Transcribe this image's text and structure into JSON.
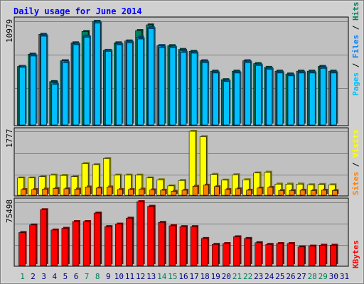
{
  "title": "Daily usage for June 2014",
  "colors": {
    "hits": "#00805c",
    "files": "#0080ff",
    "pages": "#00c0ff",
    "visits": "#ffff00",
    "sites": "#ff8000",
    "kbytes": "#ff0000",
    "weekend_label": "#00805c",
    "weekday_label": "#000080",
    "title": "#0000ff",
    "panel": "#c0c0c0",
    "frame": "#d0d0d0"
  },
  "chart_data": [
    {
      "type": "bar",
      "panel": "hits-files-pages",
      "ymax": 10979,
      "ymax_label": "10979",
      "legend": [
        "Hits",
        "Files",
        "Pages"
      ],
      "series": [
        {
          "name": "Hits",
          "values": [
            6200,
            7500,
            9600,
            4600,
            6800,
            8700,
            9900,
            11100,
            7900,
            8700,
            8900,
            10000,
            10600,
            8400,
            8400,
            8000,
            7800,
            6800,
            5700,
            4800,
            5700,
            6800,
            6500,
            6100,
            5700,
            5400,
            5700,
            5700,
            6200,
            5700
          ]
        },
        {
          "name": "Files",
          "values": [
            6200,
            7400,
            9500,
            4500,
            6800,
            8600,
            9400,
            10900,
            7900,
            8600,
            8800,
            9300,
            10300,
            8400,
            8300,
            7900,
            7700,
            6700,
            5600,
            4700,
            5600,
            6700,
            6400,
            6000,
            5600,
            5300,
            5600,
            5600,
            6100,
            5600
          ]
        },
        {
          "name": "Pages",
          "values": [
            6100,
            7300,
            9400,
            4300,
            6600,
            8500,
            9300,
            10800,
            7800,
            8500,
            8700,
            9100,
            10200,
            8200,
            8200,
            7700,
            7600,
            6600,
            5500,
            4600,
            5500,
            6600,
            6300,
            5900,
            5500,
            5200,
            5500,
            5500,
            6000,
            5500
          ]
        }
      ]
    },
    {
      "type": "bar",
      "panel": "visits-sites",
      "ymax": 1777,
      "ymax_label": "1777",
      "legend": [
        "Visits",
        "Sites"
      ],
      "series": [
        {
          "name": "Visits",
          "values": [
            480,
            480,
            520,
            560,
            550,
            520,
            880,
            850,
            1020,
            560,
            560,
            560,
            480,
            430,
            260,
            410,
            1780,
            1630,
            580,
            420,
            570,
            430,
            620,
            640,
            310,
            310,
            310,
            290,
            300,
            290
          ]
        },
        {
          "name": "Sites",
          "values": [
            160,
            160,
            170,
            190,
            180,
            170,
            230,
            200,
            230,
            160,
            160,
            170,
            150,
            140,
            110,
            140,
            250,
            280,
            240,
            160,
            180,
            140,
            200,
            220,
            130,
            130,
            140,
            130,
            140,
            130
          ]
        }
      ]
    },
    {
      "type": "bar",
      "panel": "kbytes",
      "ymax": 75498,
      "ymax_label": "75498",
      "legend": [
        "KBytes"
      ],
      "series": [
        {
          "name": "KBytes",
          "values": [
            39000,
            48000,
            66000,
            42000,
            44000,
            52000,
            52000,
            62000,
            46000,
            49000,
            56000,
            76000,
            70000,
            51000,
            47000,
            46000,
            46000,
            32000,
            25000,
            26000,
            34000,
            32000,
            27000,
            25000,
            26000,
            26000,
            22000,
            23000,
            24000,
            24000
          ]
        }
      ]
    },
    {
      "type": "bar",
      "panel": "x-axis",
      "categories": [
        "1",
        "2",
        "3",
        "4",
        "5",
        "6",
        "7",
        "8",
        "9",
        "10",
        "11",
        "12",
        "13",
        "14",
        "15",
        "16",
        "17",
        "18",
        "19",
        "20",
        "21",
        "22",
        "23",
        "24",
        "25",
        "26",
        "27",
        "28",
        "29",
        "30",
        "31"
      ],
      "weekend_days": [
        "1",
        "7",
        "8",
        "14",
        "15",
        "21",
        "22",
        "28",
        "29"
      ]
    }
  ]
}
